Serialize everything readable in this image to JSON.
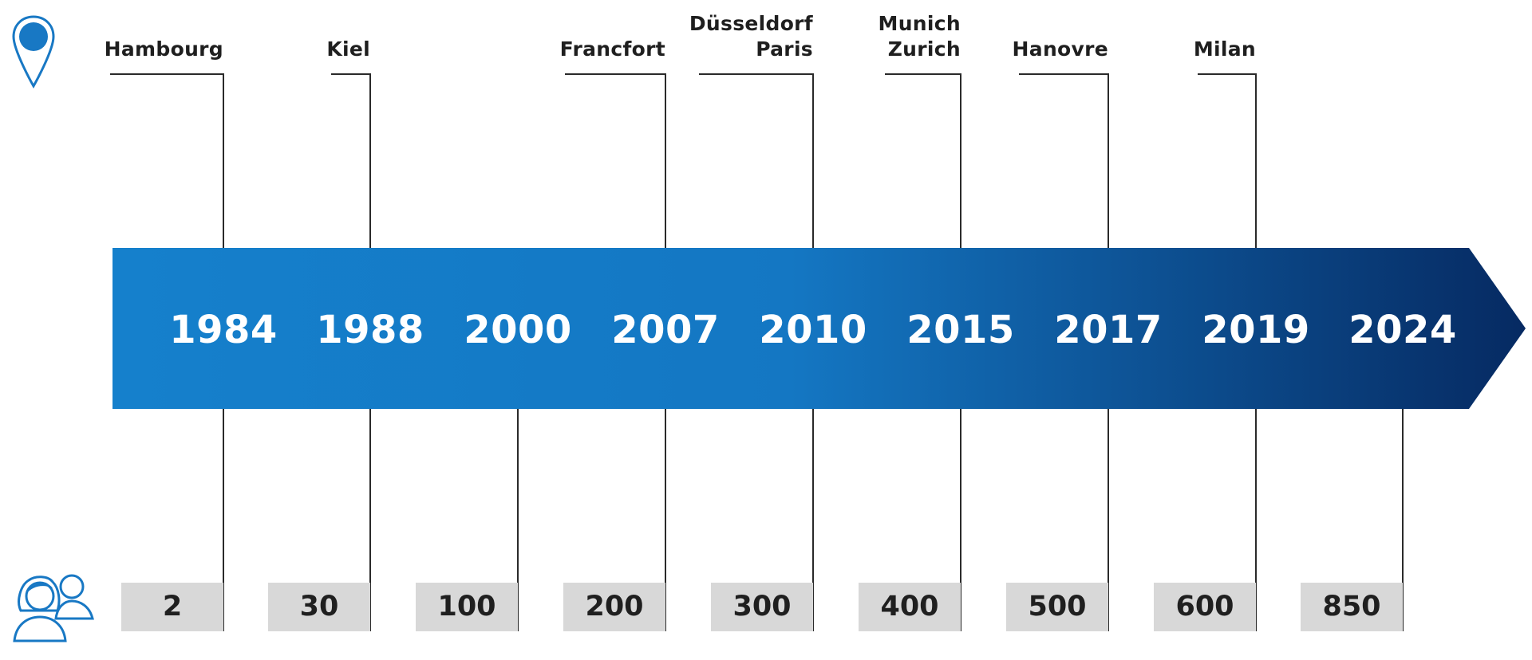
{
  "colors": {
    "arrow_start": "#1580cc",
    "arrow_mid": "#1477c3",
    "arrow_end": "#062a62",
    "pin": "#1878c4",
    "people": "#1878c4",
    "count_box": "#d8d8d8",
    "leader_line": "#2a2a2a"
  },
  "icons": {
    "locations": "map-pin-icon",
    "employees": "people-icon"
  },
  "years": [
    "1984",
    "1988",
    "2000",
    "2007",
    "2010",
    "2015",
    "2017",
    "2019",
    "2024"
  ],
  "cities": [
    {
      "year": "1984",
      "label": "Hambourg"
    },
    {
      "year": "1988",
      "label": "Kiel"
    },
    {
      "year": "2007",
      "label": "Francfort"
    },
    {
      "year": "2010",
      "label": "Düsseldorf\nParis"
    },
    {
      "year": "2015",
      "label": "Munich\nZurich"
    },
    {
      "year": "2017",
      "label": "Hanovre"
    },
    {
      "year": "2019",
      "label": "Milan"
    }
  ],
  "employees": [
    "2",
    "30",
    "100",
    "200",
    "300",
    "400",
    "500",
    "600",
    "850"
  ]
}
